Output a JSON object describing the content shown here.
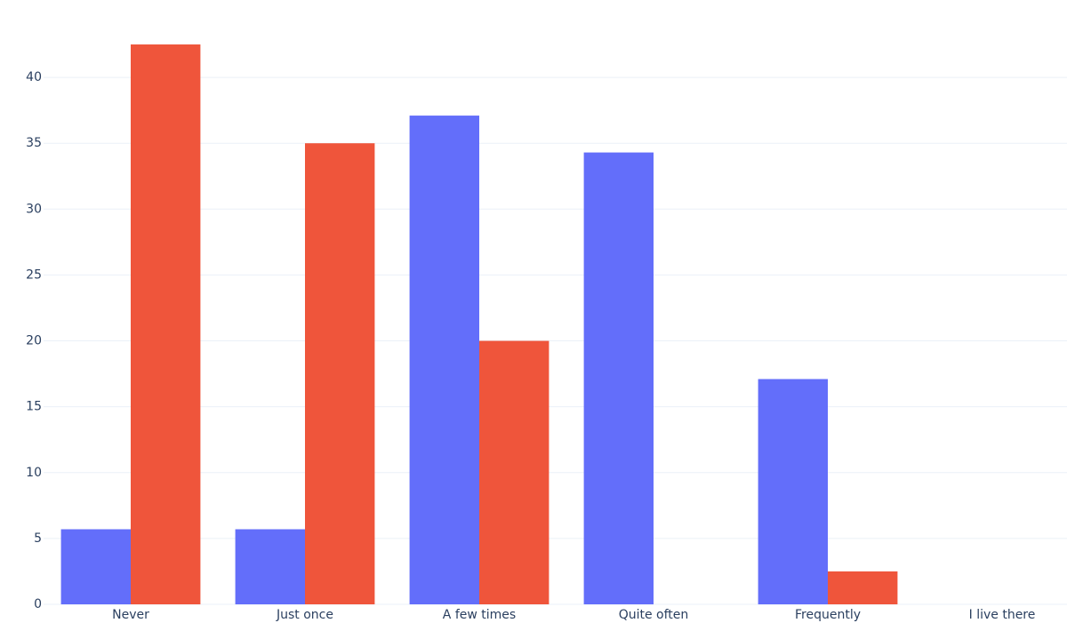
{
  "chart_data": {
    "type": "bar",
    "barmode": "group",
    "categories": [
      "Never",
      "Just once",
      "A few times",
      "Quite often",
      "Frequently",
      "I live there"
    ],
    "series": [
      {
        "color": "#636efa",
        "values": [
          5.7,
          5.7,
          37.1,
          34.3,
          17.1,
          0
        ]
      },
      {
        "color": "#ef553b",
        "values": [
          42.5,
          35,
          20,
          0,
          2.5,
          0
        ]
      }
    ],
    "ylim": [
      0,
      45.2
    ],
    "yticks": [
      0,
      5,
      10,
      15,
      20,
      25,
      30,
      35,
      40
    ],
    "grid": true
  }
}
